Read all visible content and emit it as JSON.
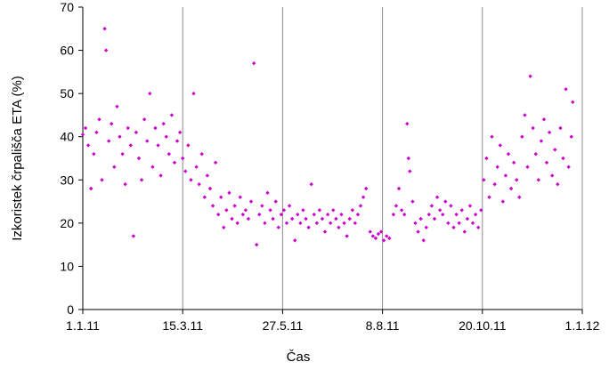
{
  "chart_data": {
    "type": "scatter",
    "title": "",
    "xlabel": "Čas",
    "ylabel": "Izkoristek črpališča ETA (%)",
    "ylim": [
      0,
      70
    ],
    "yticks": [
      0,
      10,
      20,
      30,
      40,
      50,
      60,
      70
    ],
    "xlim": [
      "2011-01-01",
      "2012-01-01"
    ],
    "xticks": [
      {
        "date": "2011-01-01",
        "label": "1.1.11"
      },
      {
        "date": "2011-03-15",
        "label": "15.3.11"
      },
      {
        "date": "2011-05-27",
        "label": "27.5.11"
      },
      {
        "date": "2011-08-08",
        "label": "8.8.11"
      },
      {
        "date": "2011-10-20",
        "label": "20.10.11"
      },
      {
        "date": "2012-01-01",
        "label": "1.1.12"
      }
    ],
    "grid": {
      "x": true,
      "y": false
    },
    "legend": "none",
    "marker": "diamond",
    "color": "#cc00cc",
    "series": [
      {
        "name": "",
        "points": [
          [
            "2011-01-01",
            40.5
          ],
          [
            "2011-01-03",
            42
          ],
          [
            "2011-01-05",
            38
          ],
          [
            "2011-01-07",
            28
          ],
          [
            "2011-01-09",
            36
          ],
          [
            "2011-01-11",
            41
          ],
          [
            "2011-01-13",
            44
          ],
          [
            "2011-01-15",
            30
          ],
          [
            "2011-01-17",
            65
          ],
          [
            "2011-01-18",
            60
          ],
          [
            "2011-01-20",
            39
          ],
          [
            "2011-01-22",
            43
          ],
          [
            "2011-01-24",
            33
          ],
          [
            "2011-01-26",
            47
          ],
          [
            "2011-01-28",
            40
          ],
          [
            "2011-01-30",
            36
          ],
          [
            "2011-02-01",
            29
          ],
          [
            "2011-02-03",
            42
          ],
          [
            "2011-02-05",
            38
          ],
          [
            "2011-02-07",
            17
          ],
          [
            "2011-02-09",
            41
          ],
          [
            "2011-02-11",
            35
          ],
          [
            "2011-02-13",
            30
          ],
          [
            "2011-02-15",
            44
          ],
          [
            "2011-02-17",
            39
          ],
          [
            "2011-02-19",
            50
          ],
          [
            "2011-02-21",
            33
          ],
          [
            "2011-02-23",
            42
          ],
          [
            "2011-02-25",
            38
          ],
          [
            "2011-02-27",
            31
          ],
          [
            "2011-03-01",
            43
          ],
          [
            "2011-03-03",
            40
          ],
          [
            "2011-03-05",
            36
          ],
          [
            "2011-03-07",
            45
          ],
          [
            "2011-03-09",
            34
          ],
          [
            "2011-03-11",
            39
          ],
          [
            "2011-03-13",
            41
          ],
          [
            "2011-03-15",
            35
          ],
          [
            "2011-03-17",
            32
          ],
          [
            "2011-03-19",
            38
          ],
          [
            "2011-03-21",
            30
          ],
          [
            "2011-03-23",
            50
          ],
          [
            "2011-03-25",
            33
          ],
          [
            "2011-03-27",
            29
          ],
          [
            "2011-03-29",
            36
          ],
          [
            "2011-03-31",
            26
          ],
          [
            "2011-04-02",
            31
          ],
          [
            "2011-04-04",
            28
          ],
          [
            "2011-04-06",
            24
          ],
          [
            "2011-04-08",
            34
          ],
          [
            "2011-04-10",
            22
          ],
          [
            "2011-04-12",
            26
          ],
          [
            "2011-04-14",
            19
          ],
          [
            "2011-04-16",
            23
          ],
          [
            "2011-04-18",
            27
          ],
          [
            "2011-04-20",
            21
          ],
          [
            "2011-04-22",
            24
          ],
          [
            "2011-04-24",
            20
          ],
          [
            "2011-04-26",
            26
          ],
          [
            "2011-04-28",
            22
          ],
          [
            "2011-04-30",
            23
          ],
          [
            "2011-05-02",
            21
          ],
          [
            "2011-05-04",
            25
          ],
          [
            "2011-05-06",
            57
          ],
          [
            "2011-05-08",
            15
          ],
          [
            "2011-05-10",
            22
          ],
          [
            "2011-05-12",
            24
          ],
          [
            "2011-05-14",
            20
          ],
          [
            "2011-05-16",
            27
          ],
          [
            "2011-05-18",
            23
          ],
          [
            "2011-05-20",
            21
          ],
          [
            "2011-05-22",
            25
          ],
          [
            "2011-05-24",
            19
          ],
          [
            "2011-05-26",
            22
          ],
          [
            "2011-05-28",
            23
          ],
          [
            "2011-05-30",
            20
          ],
          [
            "2011-06-01",
            24
          ],
          [
            "2011-06-03",
            21
          ],
          [
            "2011-06-05",
            16
          ],
          [
            "2011-06-07",
            22
          ],
          [
            "2011-06-09",
            20
          ],
          [
            "2011-06-11",
            23
          ],
          [
            "2011-06-13",
            21
          ],
          [
            "2011-06-15",
            19
          ],
          [
            "2011-06-17",
            29
          ],
          [
            "2011-06-19",
            22
          ],
          [
            "2011-06-21",
            20
          ],
          [
            "2011-06-23",
            23
          ],
          [
            "2011-06-25",
            21
          ],
          [
            "2011-06-27",
            18
          ],
          [
            "2011-06-29",
            22
          ],
          [
            "2011-07-01",
            20
          ],
          [
            "2011-07-03",
            23
          ],
          [
            "2011-07-05",
            21
          ],
          [
            "2011-07-07",
            19
          ],
          [
            "2011-07-09",
            22
          ],
          [
            "2011-07-11",
            20
          ],
          [
            "2011-07-13",
            17
          ],
          [
            "2011-07-15",
            21
          ],
          [
            "2011-07-17",
            23
          ],
          [
            "2011-07-19",
            20
          ],
          [
            "2011-07-21",
            22
          ],
          [
            "2011-07-23",
            24
          ],
          [
            "2011-07-25",
            26
          ],
          [
            "2011-07-27",
            28
          ],
          [
            "2011-07-30",
            18
          ],
          [
            "2011-08-01",
            17
          ],
          [
            "2011-08-03",
            16.5
          ],
          [
            "2011-08-05",
            17.5
          ],
          [
            "2011-08-07",
            18
          ],
          [
            "2011-08-09",
            16
          ],
          [
            "2011-08-11",
            17
          ],
          [
            "2011-08-13",
            16.5
          ],
          [
            "2011-08-16",
            22
          ],
          [
            "2011-08-18",
            24
          ],
          [
            "2011-08-20",
            28
          ],
          [
            "2011-08-22",
            23
          ],
          [
            "2011-08-24",
            22
          ],
          [
            "2011-08-26",
            43
          ],
          [
            "2011-08-27",
            35
          ],
          [
            "2011-08-28",
            32
          ],
          [
            "2011-08-30",
            25
          ],
          [
            "2011-09-01",
            20
          ],
          [
            "2011-09-03",
            18
          ],
          [
            "2011-09-05",
            21
          ],
          [
            "2011-09-07",
            16
          ],
          [
            "2011-09-09",
            19
          ],
          [
            "2011-09-11",
            22
          ],
          [
            "2011-09-13",
            24
          ],
          [
            "2011-09-15",
            21
          ],
          [
            "2011-09-17",
            26
          ],
          [
            "2011-09-19",
            23
          ],
          [
            "2011-09-21",
            22
          ],
          [
            "2011-09-23",
            25
          ],
          [
            "2011-09-25",
            20
          ],
          [
            "2011-09-27",
            24
          ],
          [
            "2011-09-29",
            19
          ],
          [
            "2011-10-01",
            22
          ],
          [
            "2011-10-03",
            20
          ],
          [
            "2011-10-05",
            23
          ],
          [
            "2011-10-07",
            18
          ],
          [
            "2011-10-09",
            21
          ],
          [
            "2011-10-11",
            24
          ],
          [
            "2011-10-13",
            20
          ],
          [
            "2011-10-15",
            22
          ],
          [
            "2011-10-17",
            19
          ],
          [
            "2011-10-19",
            23
          ],
          [
            "2011-10-21",
            30
          ],
          [
            "2011-10-23",
            35
          ],
          [
            "2011-10-25",
            26
          ],
          [
            "2011-10-27",
            40
          ],
          [
            "2011-10-29",
            29
          ],
          [
            "2011-10-31",
            33
          ],
          [
            "2011-11-02",
            38
          ],
          [
            "2011-11-04",
            25
          ],
          [
            "2011-11-06",
            31
          ],
          [
            "2011-11-08",
            36
          ],
          [
            "2011-11-10",
            28
          ],
          [
            "2011-11-12",
            34
          ],
          [
            "2011-11-14",
            30
          ],
          [
            "2011-11-16",
            26
          ],
          [
            "2011-11-18",
            40
          ],
          [
            "2011-11-20",
            45
          ],
          [
            "2011-11-22",
            33
          ],
          [
            "2011-11-24",
            54
          ],
          [
            "2011-11-26",
            42
          ],
          [
            "2011-11-28",
            36
          ],
          [
            "2011-11-30",
            30
          ],
          [
            "2011-12-02",
            39
          ],
          [
            "2011-12-04",
            44
          ],
          [
            "2011-12-06",
            34
          ],
          [
            "2011-12-08",
            41
          ],
          [
            "2011-12-10",
            31
          ],
          [
            "2011-12-12",
            37
          ],
          [
            "2011-12-14",
            29
          ],
          [
            "2011-12-16",
            42
          ],
          [
            "2011-12-18",
            35
          ],
          [
            "2011-12-20",
            51
          ],
          [
            "2011-12-22",
            33
          ],
          [
            "2011-12-24",
            40
          ],
          [
            "2011-12-25",
            48
          ]
        ]
      }
    ]
  }
}
